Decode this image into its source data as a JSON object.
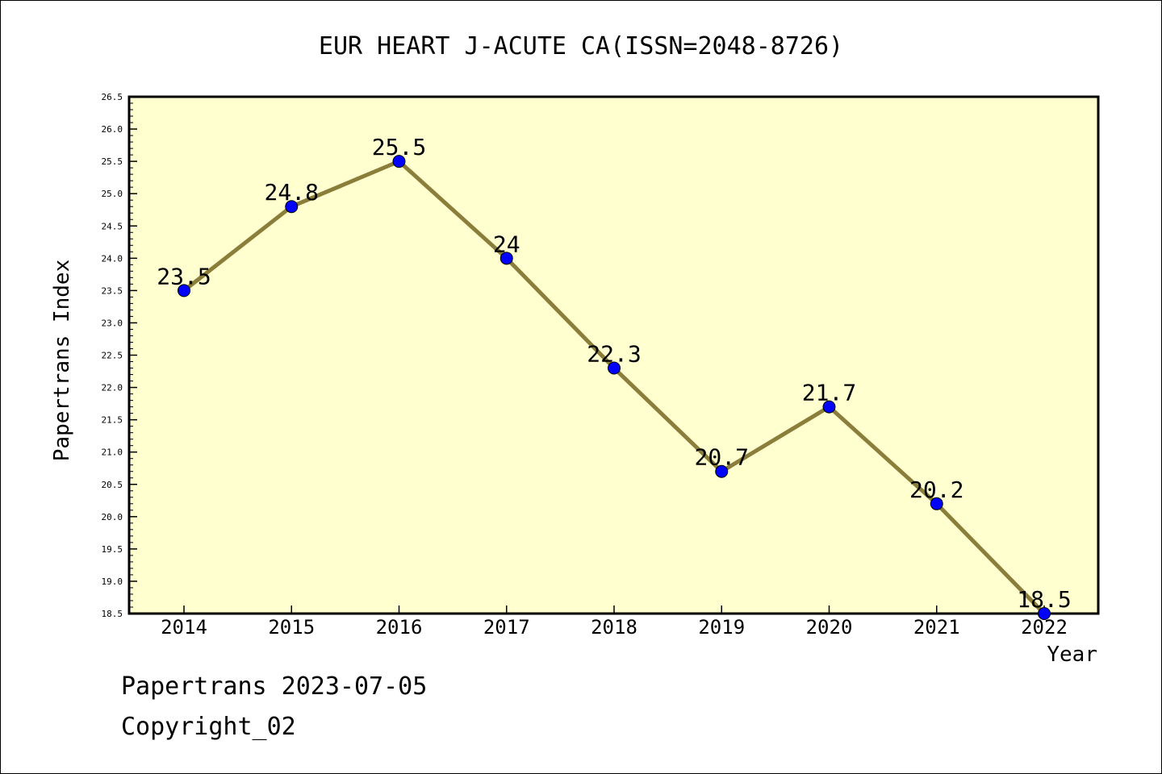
{
  "footer": {
    "line1": "Papertrans 2023-07-05",
    "line2": "Copyright_02"
  },
  "colors": {
    "plot_background": "#ffffd0",
    "line": "#8b7d3a",
    "marker": "#0000ff"
  },
  "chart_data": {
    "type": "line",
    "title": "EUR HEART J-ACUTE CA(ISSN=2048-8726)",
    "xlabel": "Year",
    "ylabel": "Papertrans Index",
    "categories": [
      "2014",
      "2015",
      "2016",
      "2017",
      "2018",
      "2019",
      "2020",
      "2021",
      "2022"
    ],
    "series": [
      {
        "values": [
          23.5,
          24.8,
          25.5,
          24,
          22.3,
          20.7,
          21.7,
          20.2,
          18.5
        ],
        "labels": [
          "23.5",
          "24.8",
          "25.5",
          "24",
          "22.3",
          "20.7",
          "21.7",
          "20.2",
          "18.5"
        ]
      }
    ],
    "ylim": [
      18.5,
      26.5
    ],
    "yticks": [
      "18.5",
      "19.0",
      "19.5",
      "20.0",
      "20.5",
      "21.0",
      "21.5",
      "22.0",
      "22.5",
      "23.0",
      "23.5",
      "24.0",
      "24.5",
      "25.0",
      "25.5",
      "26.0",
      "26.5"
    ],
    "grid": false,
    "legend": "none"
  }
}
